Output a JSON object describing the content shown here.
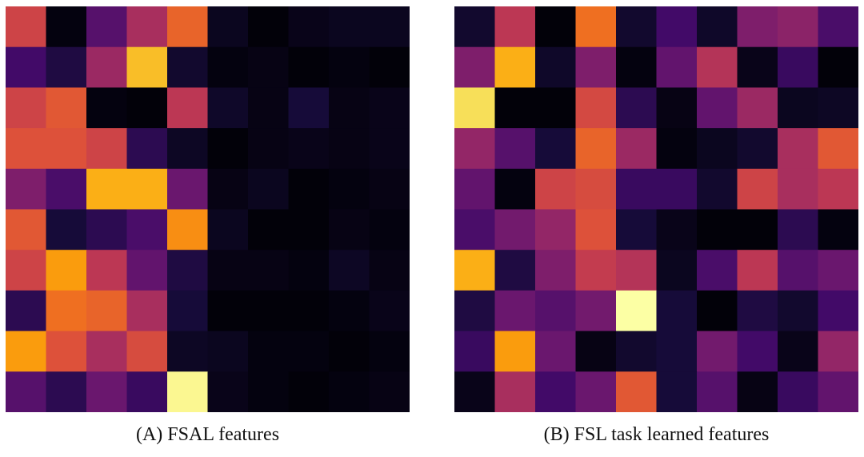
{
  "colormap": "inferno",
  "chart_data": [
    {
      "type": "heatmap",
      "caption": "(A) FSAL features",
      "rows": 10,
      "cols": 10,
      "values": [
        [
          0.55,
          0.02,
          0.25,
          0.45,
          0.65,
          0.05,
          0.01,
          0.04,
          0.05,
          0.05
        ],
        [
          0.2,
          0.12,
          0.42,
          0.85,
          0.08,
          0.02,
          0.03,
          0.01,
          0.02,
          0.01
        ],
        [
          0.55,
          0.62,
          0.02,
          0.01,
          0.5,
          0.07,
          0.03,
          0.1,
          0.03,
          0.04
        ],
        [
          0.6,
          0.6,
          0.55,
          0.15,
          0.06,
          0.01,
          0.03,
          0.04,
          0.03,
          0.04
        ],
        [
          0.35,
          0.22,
          0.82,
          0.82,
          0.3,
          0.03,
          0.05,
          0.01,
          0.02,
          0.03
        ],
        [
          0.62,
          0.1,
          0.15,
          0.22,
          0.75,
          0.05,
          0.01,
          0.01,
          0.03,
          0.02
        ],
        [
          0.55,
          0.78,
          0.5,
          0.28,
          0.12,
          0.03,
          0.03,
          0.02,
          0.06,
          0.03
        ],
        [
          0.15,
          0.68,
          0.65,
          0.45,
          0.1,
          0.01,
          0.01,
          0.01,
          0.02,
          0.04
        ],
        [
          0.78,
          0.6,
          0.45,
          0.58,
          0.06,
          0.05,
          0.02,
          0.02,
          0.01,
          0.02
        ],
        [
          0.25,
          0.15,
          0.3,
          0.18,
          0.98,
          0.04,
          0.02,
          0.01,
          0.02,
          0.03
        ]
      ]
    },
    {
      "type": "heatmap",
      "caption": "(B) FSL task learned features",
      "rows": 10,
      "cols": 10,
      "values": [
        [
          0.08,
          0.5,
          0.01,
          0.68,
          0.08,
          0.2,
          0.07,
          0.35,
          0.38,
          0.22
        ],
        [
          0.35,
          0.82,
          0.07,
          0.35,
          0.02,
          0.28,
          0.48,
          0.04,
          0.18,
          0.01
        ],
        [
          0.92,
          0.01,
          0.01,
          0.57,
          0.15,
          0.03,
          0.28,
          0.42,
          0.05,
          0.06
        ],
        [
          0.4,
          0.25,
          0.1,
          0.65,
          0.42,
          0.02,
          0.05,
          0.08,
          0.45,
          0.62
        ],
        [
          0.28,
          0.02,
          0.55,
          0.58,
          0.18,
          0.18,
          0.08,
          0.55,
          0.45,
          0.5
        ],
        [
          0.22,
          0.32,
          0.4,
          0.6,
          0.1,
          0.04,
          0.01,
          0.01,
          0.15,
          0.02
        ],
        [
          0.82,
          0.12,
          0.35,
          0.52,
          0.48,
          0.05,
          0.22,
          0.5,
          0.25,
          0.3
        ],
        [
          0.12,
          0.3,
          0.25,
          0.32,
          1.0,
          0.1,
          0.01,
          0.12,
          0.08,
          0.2
        ],
        [
          0.18,
          0.78,
          0.3,
          0.03,
          0.08,
          0.1,
          0.32,
          0.2,
          0.04,
          0.4
        ],
        [
          0.04,
          0.45,
          0.2,
          0.3,
          0.62,
          0.1,
          0.25,
          0.03,
          0.18,
          0.28
        ]
      ]
    }
  ]
}
